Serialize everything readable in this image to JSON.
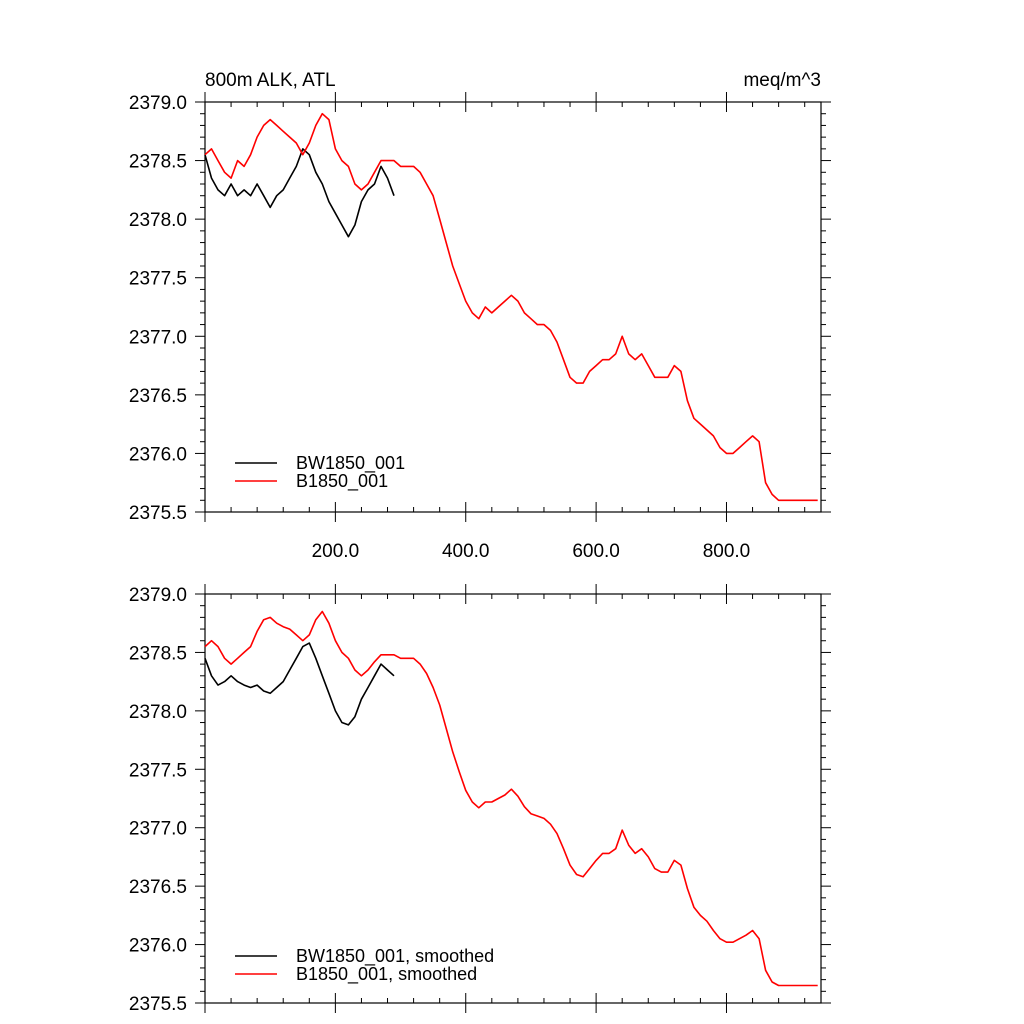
{
  "page": {
    "title_left": "800m ALK, ATL",
    "title_right": "meq/m^3"
  },
  "chart_data": [
    {
      "type": "line",
      "panel": "top",
      "title": "800m ALK, ATL",
      "units": "meq/m^3",
      "xlim": [
        0,
        945
      ],
      "ylim": [
        2375.5,
        2379.0
      ],
      "xticks": [
        200,
        400,
        600,
        800
      ],
      "xtick_labels": [
        "200.0",
        "400.0",
        "600.0",
        "800.0"
      ],
      "yticks": [
        2375.5,
        2376.0,
        2376.5,
        2377.0,
        2377.5,
        2378.0,
        2378.5,
        2379.0
      ],
      "ytick_labels": [
        "2375.5",
        "2376.0",
        "2376.5",
        "2377.0",
        "2377.5",
        "2378.0",
        "2378.5",
        "2379.0"
      ],
      "grid": false,
      "legend_position": "bottom-left",
      "series": [
        {
          "name": "BW1850_001",
          "color": "#000000",
          "x": [
            0,
            10,
            20,
            30,
            40,
            50,
            60,
            70,
            80,
            90,
            100,
            110,
            120,
            130,
            140,
            150,
            160,
            170,
            180,
            190,
            200,
            210,
            220,
            230,
            240,
            250,
            260,
            270,
            280,
            290
          ],
          "y": [
            2378.55,
            2378.35,
            2378.25,
            2378.2,
            2378.3,
            2378.2,
            2378.25,
            2378.2,
            2378.3,
            2378.2,
            2378.1,
            2378.2,
            2378.25,
            2378.35,
            2378.45,
            2378.6,
            2378.55,
            2378.4,
            2378.3,
            2378.15,
            2378.05,
            2377.95,
            2377.85,
            2377.95,
            2378.15,
            2378.25,
            2378.3,
            2378.45,
            2378.35,
            2378.2
          ]
        },
        {
          "name": "B1850_001",
          "color": "#ff0000",
          "x": [
            0,
            10,
            20,
            30,
            40,
            50,
            60,
            70,
            80,
            90,
            100,
            110,
            120,
            130,
            140,
            150,
            160,
            170,
            180,
            190,
            200,
            210,
            220,
            230,
            240,
            250,
            260,
            270,
            280,
            290,
            300,
            310,
            320,
            330,
            340,
            350,
            360,
            370,
            380,
            390,
            400,
            410,
            420,
            430,
            440,
            450,
            460,
            470,
            480,
            490,
            500,
            510,
            520,
            530,
            540,
            550,
            560,
            570,
            580,
            590,
            600,
            610,
            620,
            630,
            640,
            650,
            660,
            670,
            680,
            690,
            700,
            710,
            720,
            730,
            740,
            750,
            760,
            770,
            780,
            790,
            800,
            810,
            820,
            830,
            840,
            850,
            860,
            870,
            880,
            890,
            900,
            910,
            920,
            930,
            940
          ],
          "y": [
            2378.55,
            2378.6,
            2378.5,
            2378.4,
            2378.35,
            2378.5,
            2378.45,
            2378.55,
            2378.7,
            2378.8,
            2378.85,
            2378.8,
            2378.75,
            2378.7,
            2378.65,
            2378.55,
            2378.65,
            2378.8,
            2378.9,
            2378.85,
            2378.6,
            2378.5,
            2378.45,
            2378.3,
            2378.25,
            2378.3,
            2378.4,
            2378.5,
            2378.5,
            2378.5,
            2378.45,
            2378.45,
            2378.45,
            2378.4,
            2378.3,
            2378.2,
            2378.0,
            2377.8,
            2377.6,
            2377.45,
            2377.3,
            2377.2,
            2377.15,
            2377.25,
            2377.2,
            2377.25,
            2377.3,
            2377.35,
            2377.3,
            2377.2,
            2377.15,
            2377.1,
            2377.1,
            2377.05,
            2376.95,
            2376.8,
            2376.65,
            2376.6,
            2376.6,
            2376.7,
            2376.75,
            2376.8,
            2376.8,
            2376.85,
            2377.0,
            2376.85,
            2376.8,
            2376.85,
            2376.75,
            2376.65,
            2376.65,
            2376.65,
            2376.75,
            2376.7,
            2376.45,
            2376.3,
            2376.25,
            2376.2,
            2376.15,
            2376.05,
            2376.0,
            2376.0,
            2376.05,
            2376.1,
            2376.15,
            2376.1,
            2375.75,
            2375.65,
            2375.6,
            2375.6,
            2375.6,
            2375.6,
            2375.6,
            2375.6,
            2375.6
          ]
        }
      ]
    },
    {
      "type": "line",
      "panel": "bottom",
      "xlim": [
        0,
        945
      ],
      "ylim": [
        2375.5,
        2379.0
      ],
      "yticks": [
        2375.5,
        2376.0,
        2376.5,
        2377.0,
        2377.5,
        2378.0,
        2378.5,
        2379.0
      ],
      "ytick_labels": [
        "2375.5",
        "2376.0",
        "2376.5",
        "2377.0",
        "2377.5",
        "2378.0",
        "2378.5",
        "2379.0"
      ],
      "grid": false,
      "legend_position": "bottom-left",
      "series": [
        {
          "name": "BW1850_001, smoothed",
          "color": "#000000",
          "x": [
            0,
            10,
            20,
            30,
            40,
            50,
            60,
            70,
            80,
            90,
            100,
            110,
            120,
            130,
            140,
            150,
            160,
            170,
            180,
            190,
            200,
            210,
            220,
            230,
            240,
            250,
            260,
            270,
            280,
            290
          ],
          "y": [
            2378.45,
            2378.3,
            2378.22,
            2378.25,
            2378.3,
            2378.25,
            2378.22,
            2378.2,
            2378.22,
            2378.17,
            2378.15,
            2378.2,
            2378.25,
            2378.35,
            2378.45,
            2378.55,
            2378.58,
            2378.45,
            2378.3,
            2378.15,
            2378.0,
            2377.9,
            2377.88,
            2377.95,
            2378.1,
            2378.2,
            2378.3,
            2378.4,
            2378.35,
            2378.3
          ]
        },
        {
          "name": "B1850_001, smoothed",
          "color": "#ff0000",
          "x": [
            0,
            10,
            20,
            30,
            40,
            50,
            60,
            70,
            80,
            90,
            100,
            110,
            120,
            130,
            140,
            150,
            160,
            170,
            180,
            190,
            200,
            210,
            220,
            230,
            240,
            250,
            260,
            270,
            280,
            290,
            300,
            310,
            320,
            330,
            340,
            350,
            360,
            370,
            380,
            390,
            400,
            410,
            420,
            430,
            440,
            450,
            460,
            470,
            480,
            490,
            500,
            510,
            520,
            530,
            540,
            550,
            560,
            570,
            580,
            590,
            600,
            610,
            620,
            630,
            640,
            650,
            660,
            670,
            680,
            690,
            700,
            710,
            720,
            730,
            740,
            750,
            760,
            770,
            780,
            790,
            800,
            810,
            820,
            830,
            840,
            850,
            860,
            870,
            880,
            890,
            900,
            910,
            920,
            930,
            940
          ],
          "y": [
            2378.55,
            2378.6,
            2378.55,
            2378.45,
            2378.4,
            2378.45,
            2378.5,
            2378.55,
            2378.68,
            2378.78,
            2378.8,
            2378.75,
            2378.72,
            2378.7,
            2378.65,
            2378.6,
            2378.65,
            2378.78,
            2378.85,
            2378.75,
            2378.6,
            2378.5,
            2378.45,
            2378.35,
            2378.3,
            2378.35,
            2378.42,
            2378.48,
            2378.48,
            2378.48,
            2378.45,
            2378.45,
            2378.45,
            2378.4,
            2378.32,
            2378.2,
            2378.05,
            2377.85,
            2377.65,
            2377.48,
            2377.32,
            2377.22,
            2377.17,
            2377.22,
            2377.22,
            2377.25,
            2377.28,
            2377.33,
            2377.27,
            2377.18,
            2377.12,
            2377.1,
            2377.08,
            2377.03,
            2376.95,
            2376.82,
            2376.68,
            2376.6,
            2376.58,
            2376.65,
            2376.72,
            2376.78,
            2376.78,
            2376.82,
            2376.98,
            2376.85,
            2376.78,
            2376.82,
            2376.75,
            2376.65,
            2376.62,
            2376.62,
            2376.72,
            2376.68,
            2376.48,
            2376.32,
            2376.25,
            2376.2,
            2376.12,
            2376.05,
            2376.02,
            2376.02,
            2376.05,
            2376.08,
            2376.12,
            2376.05,
            2375.78,
            2375.68,
            2375.65,
            2375.65,
            2375.65,
            2375.65,
            2375.65,
            2375.65,
            2375.65
          ]
        }
      ]
    }
  ]
}
